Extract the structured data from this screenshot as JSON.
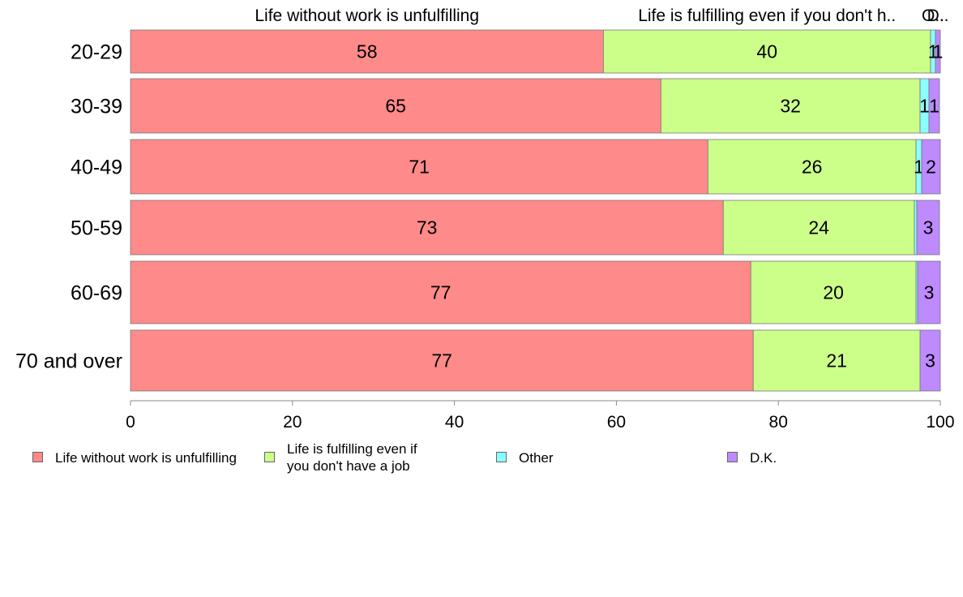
{
  "chart_data": {
    "type": "bar",
    "orientation": "horizontal",
    "stacked": true,
    "categories": [
      "20-29",
      "30-39",
      "40-49",
      "50-59",
      "60-69",
      "70 and over"
    ],
    "series": [
      {
        "name": "Life without work is unfulfilling",
        "legend_label": "Life without work is unfulfilling",
        "top_label": "Life without work is unfulfilling",
        "color": "#FF8A8A",
        "values": [
          58.4,
          65.5,
          71.3,
          73.2,
          76.6,
          76.9
        ],
        "labels": [
          "58",
          "65",
          "71",
          "73",
          "77",
          "77"
        ]
      },
      {
        "name": "Life is fulfilling even if you don't have a job",
        "legend_label": "Life is fulfilling even if\nyou don't have a job",
        "top_label": "Life is fulfilling even if you don't h..",
        "color": "#CCFF8A",
        "values": [
          40.4,
          32.0,
          25.7,
          23.6,
          20.4,
          20.6
        ],
        "labels": [
          "40",
          "32",
          "26",
          "24",
          "20",
          "21"
        ]
      },
      {
        "name": "Other",
        "legend_label": "Other",
        "top_label": "O..",
        "color": "#8AFFFF",
        "values": [
          0.6,
          1.1,
          0.7,
          0.3,
          0.2,
          0.0
        ],
        "labels": [
          "1",
          "1",
          "1",
          "",
          "",
          ""
        ]
      },
      {
        "name": "D.K.",
        "legend_label": "D.K.",
        "top_label": "D..",
        "color": "#BD8AFF",
        "values": [
          0.6,
          1.3,
          2.3,
          2.8,
          2.8,
          2.5
        ],
        "labels": [
          "1",
          "1",
          "2",
          "3",
          "3",
          "3"
        ]
      }
    ],
    "xlim": [
      0,
      100
    ],
    "x_ticks": [
      "0",
      "20",
      "40",
      "60",
      "80",
      "100"
    ],
    "grid": false,
    "legend_position": "bottom"
  }
}
